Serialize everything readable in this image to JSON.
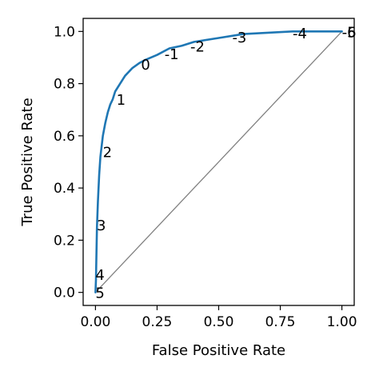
{
  "chart_data": {
    "type": "line",
    "xlabel": "False Positive Rate",
    "ylabel": "True Positive Rate",
    "xlim": [
      -0.05,
      1.05
    ],
    "ylim": [
      -0.05,
      1.05
    ],
    "xticks": [
      0.0,
      0.25,
      0.5,
      0.75,
      1.0
    ],
    "xtick_labels": [
      "0.00",
      "0.25",
      "0.50",
      "0.75",
      "1.00"
    ],
    "yticks": [
      0.0,
      0.2,
      0.4,
      0.6,
      0.8,
      1.0
    ],
    "ytick_labels": [
      "0.0",
      "0.2",
      "0.4",
      "0.6",
      "0.8",
      "1.0"
    ],
    "grid": false,
    "legend": "none",
    "series": [
      {
        "color": "#1f77b4",
        "x": [
          0.0,
          0.002,
          0.004,
          0.006,
          0.01,
          0.015,
          0.02,
          0.025,
          0.03,
          0.04,
          0.05,
          0.06,
          0.07,
          0.08,
          0.1,
          0.12,
          0.15,
          0.18,
          0.2,
          0.25,
          0.3,
          0.35,
          0.4,
          0.5,
          0.6,
          0.7,
          0.8,
          0.9,
          1.0
        ],
        "y": [
          0.0,
          0.05,
          0.15,
          0.25,
          0.35,
          0.45,
          0.52,
          0.56,
          0.6,
          0.65,
          0.69,
          0.72,
          0.74,
          0.77,
          0.8,
          0.83,
          0.86,
          0.88,
          0.89,
          0.91,
          0.935,
          0.945,
          0.96,
          0.975,
          0.99,
          0.995,
          1.0,
          1.0,
          1.0
        ]
      },
      {
        "color": "#808080",
        "x": [
          0.0,
          1.0
        ],
        "y": [
          0.0,
          1.0
        ]
      }
    ],
    "annotations": [
      {
        "text": "5",
        "x": 0.0,
        "y": 0.0
      },
      {
        "text": "4",
        "x": 0.0,
        "y": 0.07
      },
      {
        "text": "3",
        "x": 0.005,
        "y": 0.26
      },
      {
        "text": "2",
        "x": 0.03,
        "y": 0.54
      },
      {
        "text": "1",
        "x": 0.085,
        "y": 0.74
      },
      {
        "text": "0",
        "x": 0.185,
        "y": 0.875
      },
      {
        "text": "-1",
        "x": 0.28,
        "y": 0.915
      },
      {
        "text": "-2",
        "x": 0.385,
        "y": 0.945
      },
      {
        "text": "-3",
        "x": 0.555,
        "y": 0.98
      },
      {
        "text": "-4",
        "x": 0.8,
        "y": 0.995
      },
      {
        "text": "-5",
        "x": 1.0,
        "y": 1.0
      },
      {
        "text": "-6",
        "x": 1.0,
        "y": 1.0
      }
    ]
  }
}
